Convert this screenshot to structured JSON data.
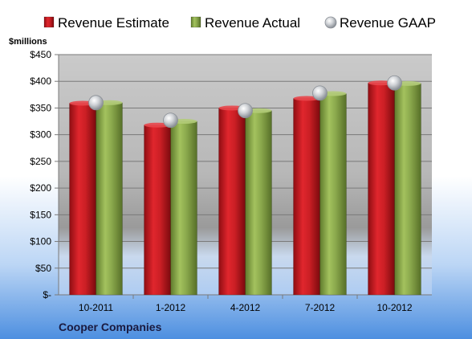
{
  "chart_data": {
    "type": "bar",
    "title": "",
    "xlabel": "",
    "ylabel": "$millions",
    "footer_label": "Cooper Companies",
    "ylim": [
      0,
      450
    ],
    "y_ticks": [
      0,
      50,
      100,
      150,
      200,
      250,
      300,
      350,
      400,
      450
    ],
    "y_tick_labels": [
      "$-",
      "$50",
      "$100",
      "$150",
      "$200",
      "$250",
      "$300",
      "$350",
      "$400",
      "$450"
    ],
    "categories": [
      "10-2011",
      "1-2012",
      "4-2012",
      "7-2012",
      "10-2012"
    ],
    "grid": true,
    "legend_position": "top",
    "series": [
      {
        "name": "Revenue Estimate",
        "type": "bar",
        "color": "#cc1f25",
        "values": [
          359,
          318,
          350,
          368,
          397
        ]
      },
      {
        "name": "Revenue Actual",
        "type": "bar",
        "color": "#8aa84c",
        "values": [
          360,
          325,
          345,
          377,
          396
        ]
      },
      {
        "name": "Revenue GAAP",
        "type": "marker",
        "color": "#bfc3c8",
        "values": [
          360,
          327,
          345,
          378,
          397
        ]
      }
    ]
  }
}
